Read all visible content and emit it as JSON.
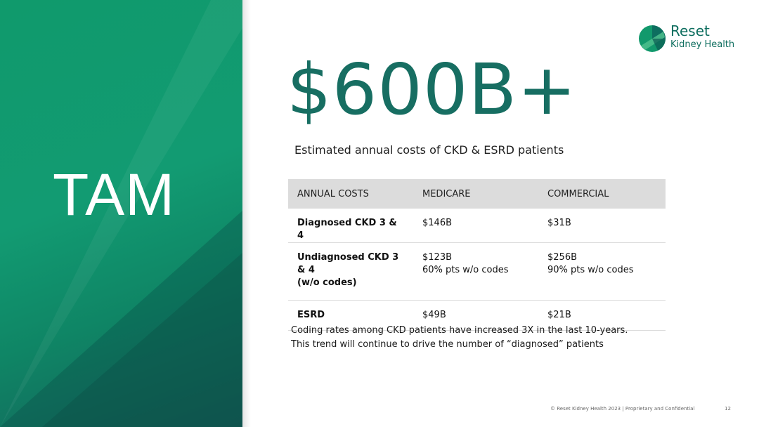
{
  "side_panel": {
    "title": "TAM",
    "colors": {
      "green": "#109a6c",
      "dark_green": "#14615a"
    }
  },
  "logo": {
    "line1": "Reset",
    "line2": "Kidney Health",
    "icon": "reset-kidney-logo-icon",
    "color": "#0e6e5f"
  },
  "headline": {
    "value": "$600B+",
    "subtitle": "Estimated annual costs of CKD & ESRD patients",
    "color": "#176e62"
  },
  "table": {
    "headers": [
      "ANNUAL COSTS",
      "MEDICARE",
      "COMMERCIAL"
    ],
    "rows": [
      {
        "label": [
          "Diagnosed CKD 3 & 4"
        ],
        "medicare": [
          "$146B"
        ],
        "commercial": [
          "$31B"
        ]
      },
      {
        "label": [
          "Undiagnosed CKD 3 & 4",
          "(w/o codes)"
        ],
        "medicare": [
          "$123B",
          "60% pts w/o codes"
        ],
        "commercial": [
          "$256B",
          "90% pts w/o codes"
        ]
      },
      {
        "label": [
          "ESRD"
        ],
        "medicare": [
          "$49B"
        ],
        "commercial": [
          "$21B"
        ]
      }
    ]
  },
  "note": {
    "line1": "Coding rates among CKD patients have increased 3X in the last 10-years.",
    "line2": "This trend will continue to drive the number of “diagnosed” patients"
  },
  "footer": {
    "text": "© Reset Kidney Health 2023  |  Proprietary and Confidential",
    "page": "12"
  }
}
